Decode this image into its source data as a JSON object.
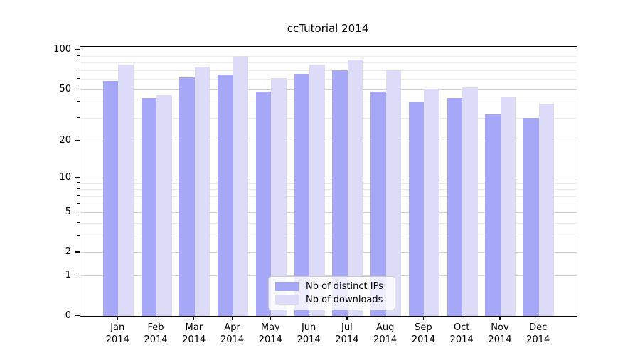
{
  "title": "ccTutorial 2014",
  "chart_data": {
    "type": "bar",
    "title": "ccTutorial 2014",
    "categories": [
      {
        "month": "Jan",
        "year": "2014"
      },
      {
        "month": "Feb",
        "year": "2014"
      },
      {
        "month": "Mar",
        "year": "2014"
      },
      {
        "month": "Apr",
        "year": "2014"
      },
      {
        "month": "May",
        "year": "2014"
      },
      {
        "month": "Jun",
        "year": "2014"
      },
      {
        "month": "Jul",
        "year": "2014"
      },
      {
        "month": "Aug",
        "year": "2014"
      },
      {
        "month": "Sep",
        "year": "2014"
      },
      {
        "month": "Oct",
        "year": "2014"
      },
      {
        "month": "Nov",
        "year": "2014"
      },
      {
        "month": "Dec",
        "year": "2014"
      }
    ],
    "series": [
      {
        "name": "Nb of distinct IPs",
        "color": "#a7a7f8",
        "values": [
          58,
          43,
          62,
          65,
          48,
          66,
          70,
          48,
          40,
          43,
          32,
          30
        ]
      },
      {
        "name": "Nb of downloads",
        "color": "#dcdcf9",
        "values": [
          78,
          45,
          75,
          90,
          61,
          78,
          85,
          70,
          51,
          52,
          44,
          39
        ]
      }
    ],
    "y_axis": {
      "scale": "log1p",
      "max": 105,
      "tick_values": [
        100,
        50,
        20,
        10,
        5,
        2,
        1,
        0
      ],
      "tick_labels": [
        "100",
        "50",
        "20",
        "10",
        "5",
        "2",
        "1",
        "0"
      ],
      "minor_gridline_values": [
        3,
        4,
        6,
        7,
        8,
        9,
        30,
        40,
        60,
        70,
        80,
        90
      ]
    },
    "grid": true,
    "legend_position": "lower center"
  },
  "colors": {
    "bar_dark": "#a7a7f8",
    "bar_light": "#dcdcf9",
    "grid_major": "#d2d2d2",
    "grid_minor": "#ececec",
    "axis": "#000000",
    "background": "#ffffff"
  }
}
